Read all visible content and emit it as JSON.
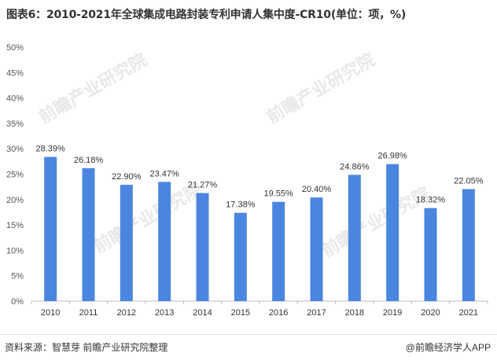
{
  "chart_data": {
    "type": "bar",
    "title": "图表6：2010-2021年全球集成电路封装专利申请人集中度-CR10(单位：项，%)",
    "categories": [
      "2010",
      "2011",
      "2012",
      "2013",
      "2014",
      "2015",
      "2016",
      "2017",
      "2018",
      "2019",
      "2020",
      "2021"
    ],
    "values": [
      28.39,
      26.18,
      22.9,
      23.47,
      21.27,
      17.38,
      19.55,
      20.4,
      24.86,
      26.98,
      18.32,
      22.05
    ],
    "value_labels": [
      "28.39%",
      "26.18%",
      "22.90%",
      "23.47%",
      "21.27%",
      "17.38%",
      "19.55%",
      "20.40%",
      "24.86%",
      "26.98%",
      "18.32%",
      "22.05%"
    ],
    "y_ticks": [
      0,
      5,
      10,
      15,
      20,
      25,
      30,
      35,
      40,
      45,
      50
    ],
    "y_tick_labels": [
      "0%",
      "5%",
      "10%",
      "15%",
      "20%",
      "25%",
      "30%",
      "35%",
      "40%",
      "45%",
      "50%"
    ],
    "ylim": [
      0,
      50
    ],
    "xlabel": "",
    "ylabel": "",
    "bar_color": "#4a86e0",
    "grid": false
  },
  "footer": {
    "source": "资料来源：智慧芽 前瞻产业研究院整理",
    "brand": "@前瞻经济学人APP"
  },
  "watermark_text": "前瞻产业研究院"
}
